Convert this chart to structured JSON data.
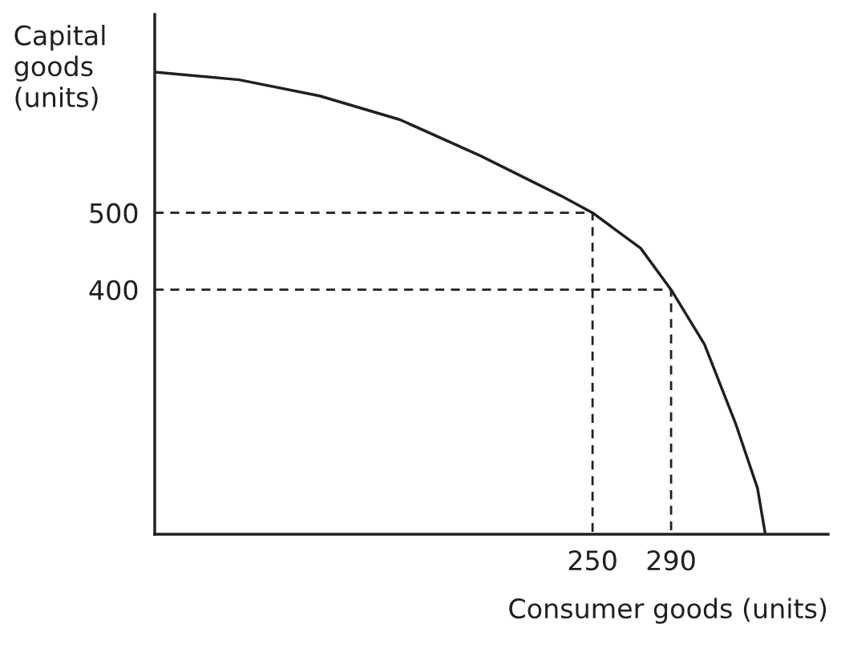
{
  "chart_data": {
    "type": "line",
    "xlabel": "Consumer goods (units)",
    "ylabel": "Capital\ngoods\n(units)",
    "xlim": [
      27,
      370
    ],
    "ylim": [
      82,
      758
    ],
    "xticks": [
      250,
      290
    ],
    "yticks": [
      400,
      500
    ],
    "grid": false,
    "legend": false,
    "marker": "none",
    "series": [
      {
        "color": "#231f20",
        "line_style": "solid",
        "x": [
          27,
          70,
          111,
          152,
          193,
          234,
          250,
          274.5,
          290,
          307,
          323,
          334,
          338
        ],
        "values": [
          683,
          673,
          652,
          621,
          574,
          522,
          500,
          454,
          400,
          329,
          225,
          142,
          82
        ]
      },
      {
        "color": "#231f20",
        "line_style": "dashed",
        "x": [
          27,
          250,
          250
        ],
        "values": [
          500,
          500,
          82
        ]
      },
      {
        "color": "#231f20",
        "line_style": "dashed",
        "x": [
          27,
          290,
          290
        ],
        "values": [
          400,
          400,
          82
        ]
      }
    ]
  }
}
